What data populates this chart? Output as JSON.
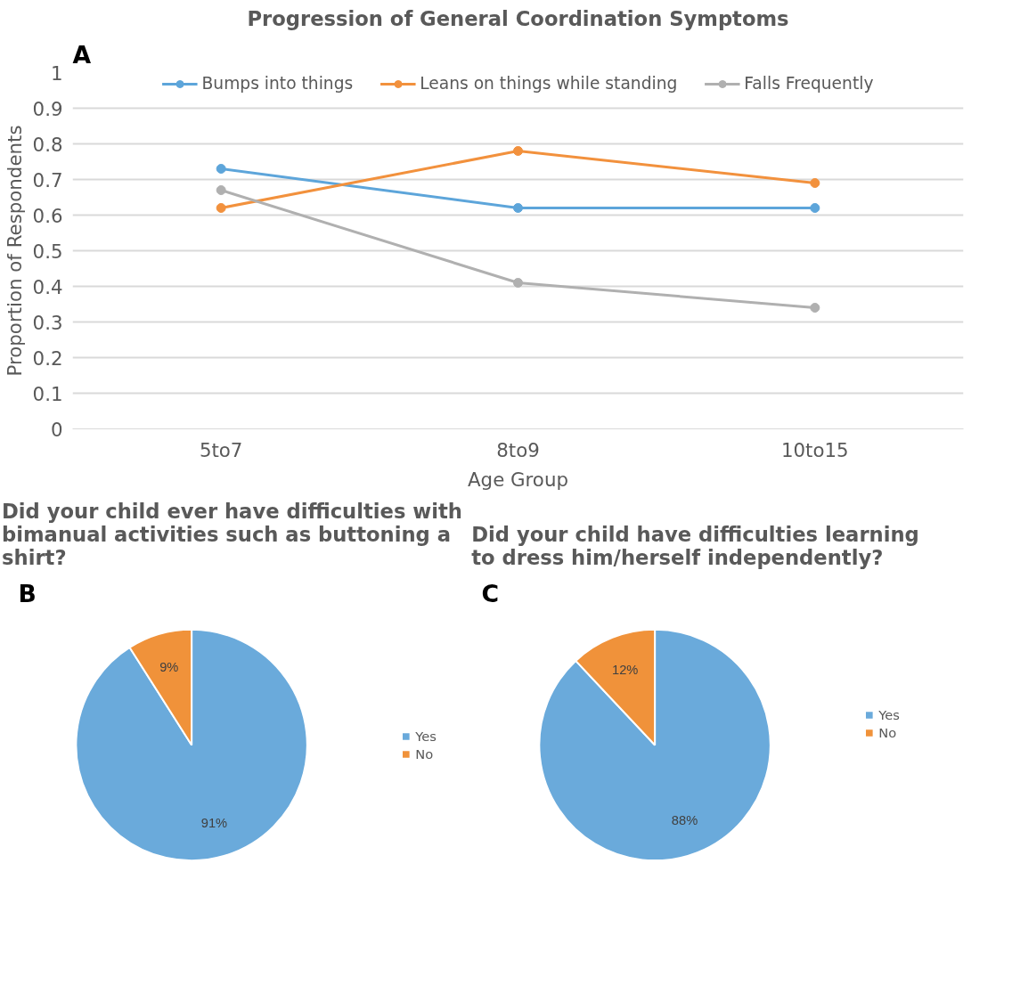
{
  "chart_data": [
    {
      "type": "line",
      "title": "Progression of General Coordination Symptoms",
      "xlabel": "Age Group",
      "ylabel": "Proportion of Respondents",
      "categories": [
        "5to7",
        "8to9",
        "10to15"
      ],
      "series": [
        {
          "name": "Bumps into things",
          "color": "#5da5da",
          "values": [
            0.73,
            0.62,
            0.62
          ]
        },
        {
          "name": "Leans on things while standing",
          "color": "#f2913d",
          "values": [
            0.62,
            0.78,
            0.69
          ]
        },
        {
          "name": "Falls Frequently",
          "color": "#b0b0b0",
          "values": [
            0.67,
            0.41,
            0.34
          ]
        }
      ],
      "ylim": [
        0,
        1
      ],
      "yticks": [
        0,
        0.1,
        0.2,
        0.3,
        0.4,
        0.5,
        0.6,
        0.7,
        0.8,
        0.9,
        1
      ],
      "grid": "y",
      "legend": "top",
      "marker": "circle",
      "line_style": "solid",
      "annotations": [
        "A"
      ]
    },
    {
      "type": "pie",
      "title": "Did your child ever have difficulties with bimanual activities such as buttoning a shirt?",
      "categories": [
        "Yes",
        "No"
      ],
      "values": [
        91,
        9
      ],
      "colors": [
        "#6aaadb",
        "#f0923a"
      ],
      "value_labels": [
        "91%",
        "9%"
      ],
      "legend": "right",
      "annotations": [
        "B"
      ]
    },
    {
      "type": "pie",
      "title": "Did your child have difficulties learning to dress him/herself independently?",
      "categories": [
        "Yes",
        "No"
      ],
      "values": [
        88,
        12
      ],
      "colors": [
        "#6aaadb",
        "#f0923a"
      ],
      "value_labels": [
        "88%",
        "12%"
      ],
      "legend": "right",
      "annotations": [
        "C"
      ]
    }
  ]
}
